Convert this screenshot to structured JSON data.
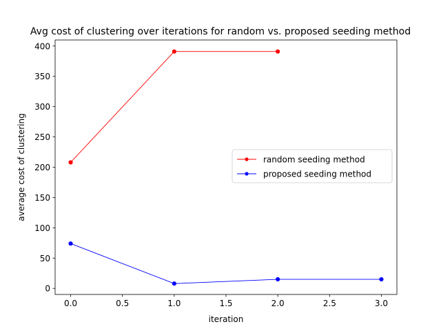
{
  "chart_data": {
    "type": "line",
    "title": "Avg cost of clustering over iterations for random vs. proposed seeding method",
    "xlabel": "iteration",
    "ylabel": "average cost of clustering",
    "xlim": [
      -0.15,
      3.15
    ],
    "ylim": [
      -10,
      410
    ],
    "xticks": [
      0.0,
      0.5,
      1.0,
      1.5,
      2.0,
      2.5,
      3.0
    ],
    "xtick_labels": [
      "0.0",
      "0.5",
      "1.0",
      "1.5",
      "2.0",
      "2.5",
      "3.0"
    ],
    "yticks": [
      0,
      50,
      100,
      150,
      200,
      250,
      300,
      350,
      400
    ],
    "ytick_labels": [
      "0",
      "50",
      "100",
      "150",
      "200",
      "250",
      "300",
      "350",
      "400"
    ],
    "grid": false,
    "legend_position": "center-right",
    "series": [
      {
        "name": "random seeding method",
        "color": "#ff0000",
        "marker": "circle",
        "x": [
          0,
          1,
          2
        ],
        "y": [
          208,
          391,
          391
        ]
      },
      {
        "name": "proposed seeding method",
        "color": "#0000ff",
        "marker": "circle",
        "x": [
          0,
          1,
          2,
          3
        ],
        "y": [
          74,
          8,
          15,
          15
        ]
      }
    ]
  }
}
